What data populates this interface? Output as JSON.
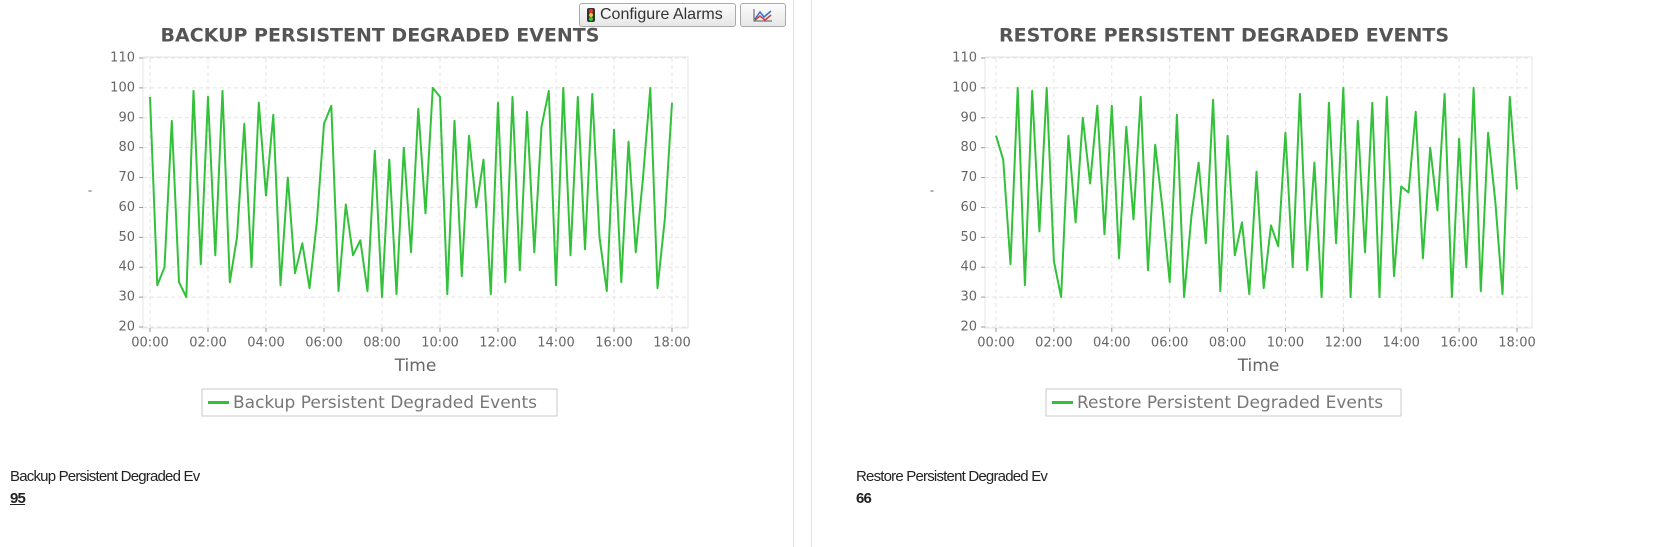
{
  "toolbar": {
    "configure_button": "Configure Alarms"
  },
  "chart_data": [
    {
      "type": "line",
      "title": "BACKUP PERSISTENT DEGRADED EVENTS",
      "xlabel": "Time",
      "ylabel": "-",
      "x": [
        "00:00",
        "00:15",
        "00:30",
        "00:45",
        "01:00",
        "01:15",
        "01:30",
        "01:45",
        "02:00",
        "02:15",
        "02:30",
        "02:45",
        "03:00",
        "03:15",
        "03:30",
        "03:45",
        "04:00",
        "04:15",
        "04:30",
        "04:45",
        "05:00",
        "05:15",
        "05:30",
        "05:45",
        "06:00",
        "06:15",
        "06:30",
        "06:45",
        "07:00",
        "07:15",
        "07:30",
        "07:45",
        "08:00",
        "08:15",
        "08:30",
        "08:45",
        "09:00",
        "09:15",
        "09:30",
        "09:45",
        "10:00",
        "10:15",
        "10:30",
        "10:45",
        "11:00",
        "11:15",
        "11:30",
        "11:45",
        "12:00",
        "12:15",
        "12:30",
        "12:45",
        "13:00",
        "13:15",
        "13:30",
        "13:45",
        "14:00",
        "14:15",
        "14:30",
        "14:45",
        "15:00",
        "15:15",
        "15:30",
        "15:45",
        "16:00",
        "16:15",
        "16:30",
        "16:45",
        "17:00",
        "17:15",
        "17:30",
        "17:45",
        "18:00"
      ],
      "series": [
        {
          "name": "Backup Persistent Degraded Events",
          "color": "#33c13a",
          "values": [
            97,
            34,
            40,
            89,
            35,
            30,
            99,
            41,
            97,
            44,
            99,
            35,
            50,
            88,
            40,
            95,
            64,
            91,
            34,
            70,
            38,
            48,
            33,
            55,
            88,
            94,
            32,
            61,
            44,
            49,
            32,
            79,
            30,
            76,
            31,
            80,
            45,
            93,
            58,
            100,
            97,
            31,
            89,
            37,
            84,
            60,
            76,
            31,
            95,
            35,
            97,
            39,
            92,
            45,
            87,
            99,
            34,
            100,
            44,
            97,
            46,
            98,
            50,
            32,
            86,
            35,
            82,
            45,
            70,
            100,
            33,
            56,
            95
          ]
        }
      ],
      "xlim": [
        "00:00",
        "18:00"
      ],
      "xticks": [
        "00:00",
        "02:00",
        "04:00",
        "06:00",
        "08:00",
        "10:00",
        "12:00",
        "14:00",
        "16:00",
        "18:00"
      ],
      "ylim": [
        20,
        110
      ],
      "yticks": [
        20,
        30,
        40,
        50,
        60,
        70,
        80,
        90,
        100,
        110
      ],
      "grid": true
    },
    {
      "type": "line",
      "title": "RESTORE PERSISTENT DEGRADED EVENTS",
      "xlabel": "Time",
      "ylabel": "-",
      "x": [
        "00:00",
        "00:15",
        "00:30",
        "00:45",
        "01:00",
        "01:15",
        "01:30",
        "01:45",
        "02:00",
        "02:15",
        "02:30",
        "02:45",
        "03:00",
        "03:15",
        "03:30",
        "03:45",
        "04:00",
        "04:15",
        "04:30",
        "04:45",
        "05:00",
        "05:15",
        "05:30",
        "05:45",
        "06:00",
        "06:15",
        "06:30",
        "06:45",
        "07:00",
        "07:15",
        "07:30",
        "07:45",
        "08:00",
        "08:15",
        "08:30",
        "08:45",
        "09:00",
        "09:15",
        "09:30",
        "09:45",
        "10:00",
        "10:15",
        "10:30",
        "10:45",
        "11:00",
        "11:15",
        "11:30",
        "11:45",
        "12:00",
        "12:15",
        "12:30",
        "12:45",
        "13:00",
        "13:15",
        "13:30",
        "13:45",
        "14:00",
        "14:15",
        "14:30",
        "14:45",
        "15:00",
        "15:15",
        "15:30",
        "15:45",
        "16:00",
        "16:15",
        "16:30",
        "16:45",
        "17:00",
        "17:15",
        "17:30",
        "17:45",
        "18:00"
      ],
      "series": [
        {
          "name": "Restore Persistent Degraded Events",
          "color": "#33c13a",
          "values": [
            84,
            76,
            41,
            100,
            34,
            99,
            52,
            100,
            42,
            30,
            84,
            55,
            90,
            68,
            94,
            51,
            94,
            43,
            87,
            56,
            97,
            39,
            81,
            60,
            35,
            91,
            30,
            57,
            75,
            48,
            96,
            32,
            84,
            44,
            55,
            31,
            72,
            33,
            54,
            47,
            85,
            40,
            98,
            39,
            75,
            30,
            95,
            48,
            100,
            30,
            89,
            45,
            95,
            30,
            97,
            37,
            67,
            65,
            92,
            43,
            80,
            59,
            98,
            30,
            83,
            40,
            100,
            32,
            85,
            62,
            31,
            97,
            66
          ]
        }
      ],
      "xlim": [
        "00:00",
        "18:00"
      ],
      "xticks": [
        "00:00",
        "02:00",
        "04:00",
        "06:00",
        "08:00",
        "10:00",
        "12:00",
        "14:00",
        "16:00",
        "18:00"
      ],
      "ylim": [
        20,
        110
      ],
      "yticks": [
        20,
        30,
        40,
        50,
        60,
        70,
        80,
        90,
        100,
        110
      ],
      "grid": true
    }
  ],
  "summaries": [
    {
      "label": "Backup Persistent Degraded Ev",
      "value": 95
    },
    {
      "label": "Restore Persistent Degraded Ev",
      "value": 66
    }
  ]
}
